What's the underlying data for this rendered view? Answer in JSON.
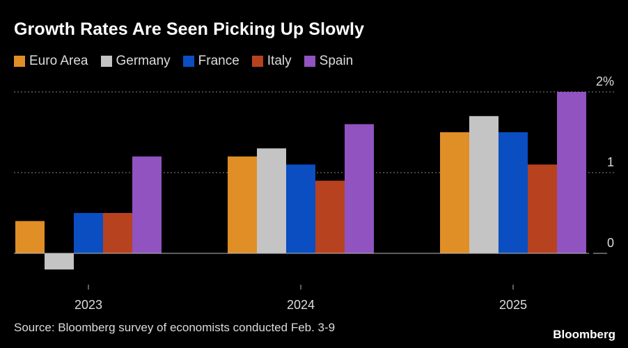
{
  "chart_data": {
    "type": "bar",
    "title": "Growth Rates Are Seen Picking Up Slowly",
    "categories": [
      "2023",
      "2024",
      "2025"
    ],
    "series": [
      {
        "name": "Euro Area",
        "color": "#e08e26",
        "values": [
          0.4,
          1.2,
          1.5
        ]
      },
      {
        "name": "Germany",
        "color": "#c4c4c4",
        "values": [
          -0.2,
          1.3,
          1.7
        ]
      },
      {
        "name": "France",
        "color": "#0a4ec2",
        "values": [
          0.5,
          1.1,
          1.5
        ]
      },
      {
        "name": "Italy",
        "color": "#b74220",
        "values": [
          0.5,
          0.9,
          1.1
        ]
      },
      {
        "name": "Spain",
        "color": "#9153c0",
        "values": [
          1.2,
          1.6,
          2.0
        ]
      }
    ],
    "y_ticks": [
      {
        "value": 0,
        "label": "0"
      },
      {
        "value": 1,
        "label": "1"
      },
      {
        "value": 2,
        "label": "2%"
      }
    ],
    "ylim": [
      -0.2,
      2
    ],
    "xlabel": "",
    "ylabel": "",
    "grid": true,
    "legend": "top-left"
  },
  "footer": {
    "source": "Source: Bloomberg survey of economists conducted Feb. 3-9",
    "brand": "Bloomberg"
  }
}
